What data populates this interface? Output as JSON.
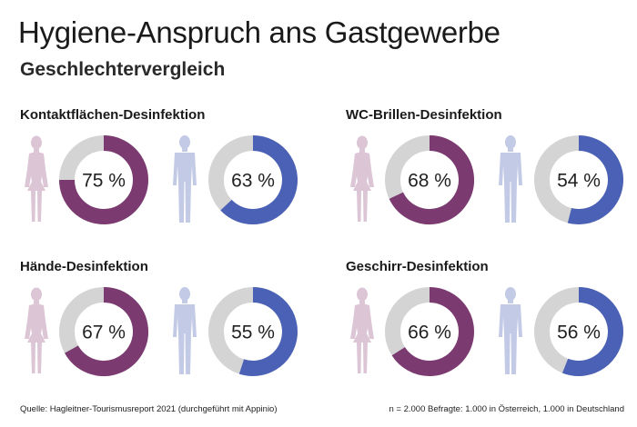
{
  "title": "Hygiene-Anspruch ans Gastgewerbe",
  "subtitle": "Geschlechtervergleich",
  "colors": {
    "female": "#7b3a70",
    "male": "#4a61b5",
    "remainder": "#d4d4d4",
    "female_silhouette": "#dcc6d6",
    "male_silhouette": "#c3cae6"
  },
  "icons": {
    "female": "woman-silhouette-icon",
    "male": "man-silhouette-icon"
  },
  "chart_data": {
    "type": "donut",
    "unit": "%",
    "series": [
      {
        "key": "female"
      },
      {
        "key": "male"
      }
    ],
    "categories": [
      "Kontaktflächen-Desinfektion",
      "WC-Brillen-Desinfektion",
      "Hände-Desinfektion",
      "Geschirr-Desinfektion"
    ],
    "panels": [
      {
        "title": "Kontaktflächen-Desinfektion",
        "female": 75,
        "male": 63,
        "female_label": "75 %",
        "male_label": "63 %"
      },
      {
        "title": "WC-Brillen-Desinfektion",
        "female": 68,
        "male": 54,
        "female_label": "68 %",
        "male_label": "54 %"
      },
      {
        "title": "Hände-Desinfektion",
        "female": 67,
        "male": 55,
        "female_label": "67 %",
        "male_label": "55 %"
      },
      {
        "title": "Geschirr-Desinfektion",
        "female": 66,
        "male": 56,
        "female_label": "66 %",
        "male_label": "56 %"
      }
    ]
  },
  "footer": {
    "source": "Quelle: Hagleitner-Tourismusreport 2021 (durchgeführt mit Appinio)",
    "sample": "n = 2.000 Befragte: 1.000 in Österreich, 1.000 in Deutschland"
  }
}
